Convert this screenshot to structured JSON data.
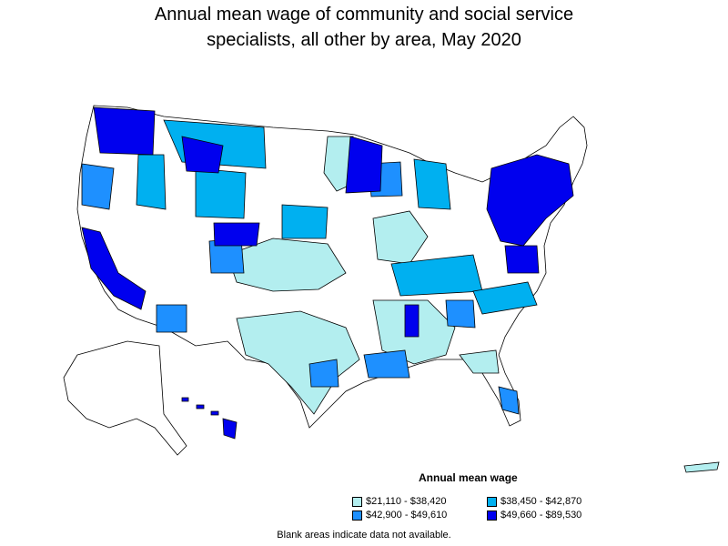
{
  "title_line1": "Annual mean wage of community and social service",
  "title_line2": "specialists, all other by area, May 2020",
  "legend": {
    "title": "Annual mean wage",
    "items": [
      {
        "label": "$21,110 - $38,420",
        "color": "#b3eeef"
      },
      {
        "label": "$38,450 - $42,870",
        "color": "#00b0f0"
      },
      {
        "label": "$42,900 - $49,610",
        "color": "#1e90ff"
      },
      {
        "label": "$49,660 - $89,530",
        "color": "#0000ee"
      }
    ]
  },
  "note": "Blank areas indicate data not available."
}
